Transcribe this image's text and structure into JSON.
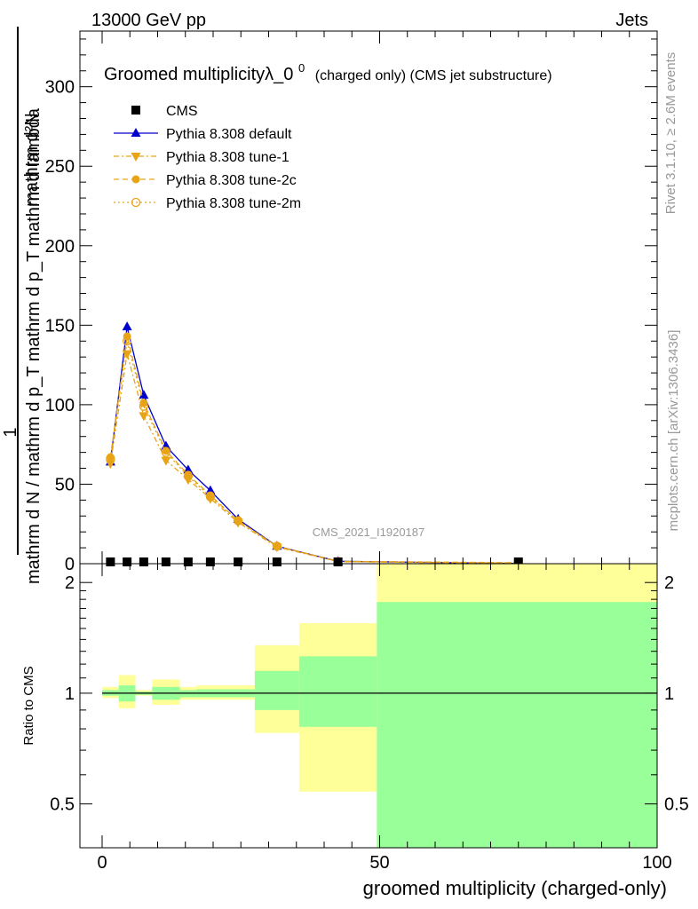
{
  "header": {
    "energy_label": "13000 GeV pp",
    "category_label": "Jets"
  },
  "side_text": {
    "rivet": "Rivet 3.1.10, ≥ 2.6M events",
    "mcplots": "mcplots.cern.ch [arXiv:1306.3436]"
  },
  "colors": {
    "cms": "#000000",
    "default": "#0000cc",
    "tune": "#e8a317",
    "band_outer": "#ffff99",
    "band_inner": "#99ff99"
  },
  "chart_data": [
    {
      "type": "line",
      "title": "Groomed multiplicityλ_0",
      "title_sup": "0",
      "title_suffix": "(charged only) (CMS jet substructure)",
      "ylabel_top": "1",
      "ylabel_numer": "mathrm d²N",
      "ylabel_denom": "mathrm d N / mathrm d p_T mathrm d p_T mathrm d lambda",
      "watermark": "CMS_2021_I1920187",
      "xlim": [
        -4,
        100
      ],
      "ylim": [
        0,
        335
      ],
      "yticks": [
        0,
        50,
        100,
        150,
        200,
        250,
        300
      ],
      "legend_position": "top-left",
      "series": [
        {
          "name": "CMS",
          "marker": "square",
          "x": [
            1.5,
            4.5,
            7.5,
            11.5,
            15.5,
            19.5,
            24.5,
            31.5,
            42.5,
            75
          ],
          "y": [
            0,
            0,
            0,
            0,
            0,
            0,
            0,
            0,
            0,
            0
          ]
        },
        {
          "name": "Pythia 8.308 default",
          "marker": "triangle",
          "line": "solid",
          "x": [
            1.5,
            4.5,
            7.5,
            11.5,
            15.5,
            19.5,
            24.5,
            31.5,
            42.5,
            75
          ],
          "y": [
            64,
            149,
            106,
            74,
            59,
            46,
            28,
            11,
            1.5,
            0.1
          ]
        },
        {
          "name": "Pythia 8.308 tune-1",
          "marker": "triangle-down",
          "line": "dashdot",
          "x": [
            1.5,
            4.5,
            7.5,
            11.5,
            15.5,
            19.5,
            24.5,
            31.5,
            42.5,
            75
          ],
          "y": [
            63,
            132,
            93,
            65,
            53,
            41,
            26,
            10.5,
            1.3,
            0.1
          ]
        },
        {
          "name": "Pythia 8.308 tune-2c",
          "marker": "circle",
          "line": "dashed",
          "x": [
            1.5,
            4.5,
            7.5,
            11.5,
            15.5,
            19.5,
            24.5,
            31.5,
            42.5,
            75
          ],
          "y": [
            67,
            143,
            101,
            71,
            56,
            43,
            27,
            11,
            1.5,
            0.6
          ]
        },
        {
          "name": "Pythia 8.308 tune-2m",
          "marker": "circle-open",
          "line": "dotted",
          "x": [
            1.5,
            4.5,
            7.5,
            11.5,
            15.5,
            19.5,
            24.5,
            31.5,
            42.5,
            75
          ],
          "y": [
            66,
            140,
            99,
            70,
            55,
            42,
            27,
            11,
            1.4,
            0.5
          ]
        }
      ]
    },
    {
      "type": "area",
      "ylabel": "Ratio to CMS",
      "xlabel": "groomed multiplicity (charged-only)",
      "xlim": [
        -4,
        100
      ],
      "ylim": [
        0.38,
        2.25
      ],
      "yticks": [
        0.5,
        1,
        2
      ],
      "xticks": [
        0,
        50,
        100
      ],
      "reference_line": 1,
      "bands": {
        "bin_edges": [
          0,
          3,
          6,
          9,
          14,
          17,
          22,
          27.5,
          35.5,
          49.5,
          100
        ],
        "outer_lo": [
          0.97,
          0.91,
          0.985,
          0.93,
          0.96,
          0.96,
          0.96,
          0.78,
          0.54,
          0.38
        ],
        "outer_hi": [
          1.04,
          1.12,
          1.02,
          1.09,
          1.04,
          1.05,
          1.05,
          1.35,
          1.55,
          2.25
        ],
        "inner_lo": [
          0.985,
          0.95,
          0.99,
          0.96,
          0.975,
          0.975,
          0.975,
          0.9,
          0.81,
          0.38
        ],
        "inner_hi": [
          1.02,
          1.05,
          1.01,
          1.04,
          1.02,
          1.025,
          1.025,
          1.15,
          1.26,
          1.77
        ]
      }
    }
  ]
}
